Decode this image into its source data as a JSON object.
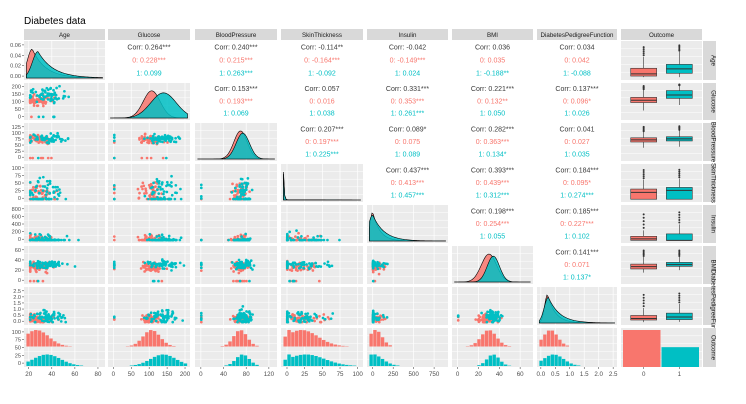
{
  "title": "Diabetes data",
  "chart_data": {
    "type": "pairs",
    "variables": [
      "Age",
      "Glucose",
      "BloodPressure",
      "SkinThickness",
      "Insulin",
      "BMI",
      "DiabetesPedigreeFunction",
      "Outcome"
    ],
    "row_labels": [
      "Age",
      "Glucose",
      "BloodPressure",
      "SkinThickness",
      "Insulin",
      "BMI",
      "DiabetesPedigreeFunction",
      "Outcome"
    ],
    "group_colors": {
      "0": "#F8766D",
      "1": "#00BFC4"
    },
    "x_ranges": {
      "Age": [
        18,
        84
      ],
      "Glucose": [
        -8,
        207
      ],
      "BloodPressure": [
        -6,
        130
      ],
      "SkinThickness": [
        -5,
        104
      ],
      "Insulin": [
        -40,
        890
      ],
      "BMI": [
        -3,
        70
      ],
      "DiabetesPedigreeFunction": [
        -0.05,
        2.55
      ]
    },
    "y_ranges": {
      "Glucose": [
        -10,
        210
      ],
      "BloodPressure": [
        -6,
        128
      ],
      "SkinThickness": [
        -5,
        102
      ],
      "Insulin": [
        -40,
        880
      ],
      "BMI": [
        -3,
        70
      ],
      "DiabetesPedigreeFunction": [
        -0.05,
        2.6
      ]
    },
    "x_ticks": {
      "Age": [
        20,
        40,
        60,
        80
      ],
      "Glucose": [
        0,
        50,
        100,
        150,
        200
      ],
      "BloodPressure": [
        0,
        40,
        80,
        120
      ],
      "SkinThickness": [
        0,
        25,
        50,
        75,
        100
      ],
      "Insulin": [
        0,
        250,
        500,
        750
      ],
      "BMI": [
        0,
        20,
        40,
        60
      ],
      "DiabetesPedigreeFunction": [
        0.0,
        0.5,
        1.0,
        1.5,
        2.0,
        2.5
      ],
      "Outcome": [
        "0",
        "1"
      ]
    },
    "y_ticks": {
      "Age": [
        "0.06",
        "0.04",
        "0.02",
        "0.00"
      ],
      "Glucose": [
        "200",
        "150",
        "100",
        "50",
        "0"
      ],
      "BloodPressure": [
        "125",
        "100",
        "75",
        "50",
        "25",
        "0"
      ],
      "SkinThickness": [
        "100",
        "75",
        "50",
        "25",
        "0"
      ],
      "Insulin": [
        "800",
        "600",
        "400",
        "200",
        "0"
      ],
      "BMI": [
        "60",
        "40",
        "20",
        "0"
      ],
      "DiabetesPedigreeFunction": [
        "2.5",
        "2.0",
        "1.5",
        "1.0",
        "0.5",
        "0.0"
      ],
      "Outcome": [
        "100",
        "75",
        "50",
        "25",
        "0"
      ]
    },
    "correlations": [
      {
        "row": 0,
        "col": 1,
        "overall": "Corr: 0.264***",
        "g0": "0: 0.228***",
        "g1": "1: 0.099"
      },
      {
        "row": 0,
        "col": 2,
        "overall": "Corr: 0.240***",
        "g0": "0: 0.215***",
        "g1": "1: 0.263***"
      },
      {
        "row": 0,
        "col": 3,
        "overall": "Corr: -0.114**",
        "g0": "0: -0.164***",
        "g1": "1: -0.092"
      },
      {
        "row": 0,
        "col": 4,
        "overall": "Corr: -0.042",
        "g0": "0: -0.149***",
        "g1": "1: 0.024"
      },
      {
        "row": 0,
        "col": 5,
        "overall": "Corr: 0.036",
        "g0": "0: 0.035",
        "g1": "1: -0.188**"
      },
      {
        "row": 0,
        "col": 6,
        "overall": "Corr: 0.034",
        "g0": "0: 0.042",
        "g1": "1: -0.088"
      },
      {
        "row": 1,
        "col": 2,
        "overall": "Corr: 0.153***",
        "g0": "0: 0.193***",
        "g1": "1: 0.069"
      },
      {
        "row": 1,
        "col": 3,
        "overall": "Corr: 0.057",
        "g0": "0: 0.016",
        "g1": "1: 0.038"
      },
      {
        "row": 1,
        "col": 4,
        "overall": "Corr: 0.331***",
        "g0": "0: 0.353***",
        "g1": "1: 0.261***"
      },
      {
        "row": 1,
        "col": 5,
        "overall": "Corr: 0.221***",
        "g0": "0: 0.132**",
        "g1": "1: 0.050"
      },
      {
        "row": 1,
        "col": 6,
        "overall": "Corr: 0.137***",
        "g0": "0: 0.096*",
        "g1": "1: 0.026"
      },
      {
        "row": 2,
        "col": 3,
        "overall": "Corr: 0.207***",
        "g0": "0: 0.197***",
        "g1": "1: 0.225***"
      },
      {
        "row": 2,
        "col": 4,
        "overall": "Corr: 0.089*",
        "g0": "0: 0.075",
        "g1": "1: 0.089"
      },
      {
        "row": 2,
        "col": 5,
        "overall": "Corr: 0.282***",
        "g0": "0: 0.363***",
        "g1": "1: 0.134*"
      },
      {
        "row": 2,
        "col": 6,
        "overall": "Corr: 0.041",
        "g0": "0: 0.027",
        "g1": "1: 0.035"
      },
      {
        "row": 3,
        "col": 4,
        "overall": "Corr: 0.437***",
        "g0": "0: 0.413***",
        "g1": "1: 0.457***"
      },
      {
        "row": 3,
        "col": 5,
        "overall": "Corr: 0.393***",
        "g0": "0: 0.439***",
        "g1": "1: 0.312***"
      },
      {
        "row": 3,
        "col": 6,
        "overall": "Corr: 0.184***",
        "g0": "0: 0.095*",
        "g1": "1: 0.274***"
      },
      {
        "row": 4,
        "col": 5,
        "overall": "Corr: 0.198***",
        "g0": "0: 0.254***",
        "g1": "1: 0.055"
      },
      {
        "row": 4,
        "col": 6,
        "overall": "Corr: 0.185***",
        "g0": "0: 0.227***",
        "g1": "1: 0.102"
      },
      {
        "row": 5,
        "col": 6,
        "overall": "Corr: 0.141***",
        "g0": "0: 0.071",
        "g1": "1: 0.137*"
      }
    ],
    "boxplots": {
      "Age": {
        "0": [
          21,
          23,
          27,
          37,
          58
        ],
        "1": [
          21,
          28,
          36,
          44,
          67
        ]
      },
      "Glucose": {
        "0": [
          44,
          93,
          107,
          125,
          172
        ],
        "1": [
          78,
          119,
          140,
          167,
          199
        ]
      },
      "BloodPressure": {
        "0": [
          40,
          62,
          70,
          78,
          100
        ],
        "1": [
          44,
          66,
          74,
          82,
          106
        ]
      },
      "SkinThickness": {
        "0": [
          0,
          0,
          21,
          31,
          60
        ],
        "1": [
          0,
          0,
          27,
          36,
          63
        ]
      },
      "Insulin": {
        "0": [
          0,
          0,
          39,
          105,
          260
        ],
        "1": [
          0,
          0,
          0,
          167,
          415
        ]
      },
      "BMI": {
        "0": [
          18,
          25.4,
          30.1,
          35.3,
          50
        ],
        "1": [
          22.9,
          30.8,
          34.3,
          38.8,
          50
        ]
      },
      "DiabetesPedigreeFunction": {
        "0": [
          0.08,
          0.23,
          0.34,
          0.56,
          1.1
        ],
        "1": [
          0.09,
          0.26,
          0.45,
          0.73,
          1.4
        ]
      },
      "Outcome": {
        "0": 500,
        "1": 268
      }
    }
  }
}
